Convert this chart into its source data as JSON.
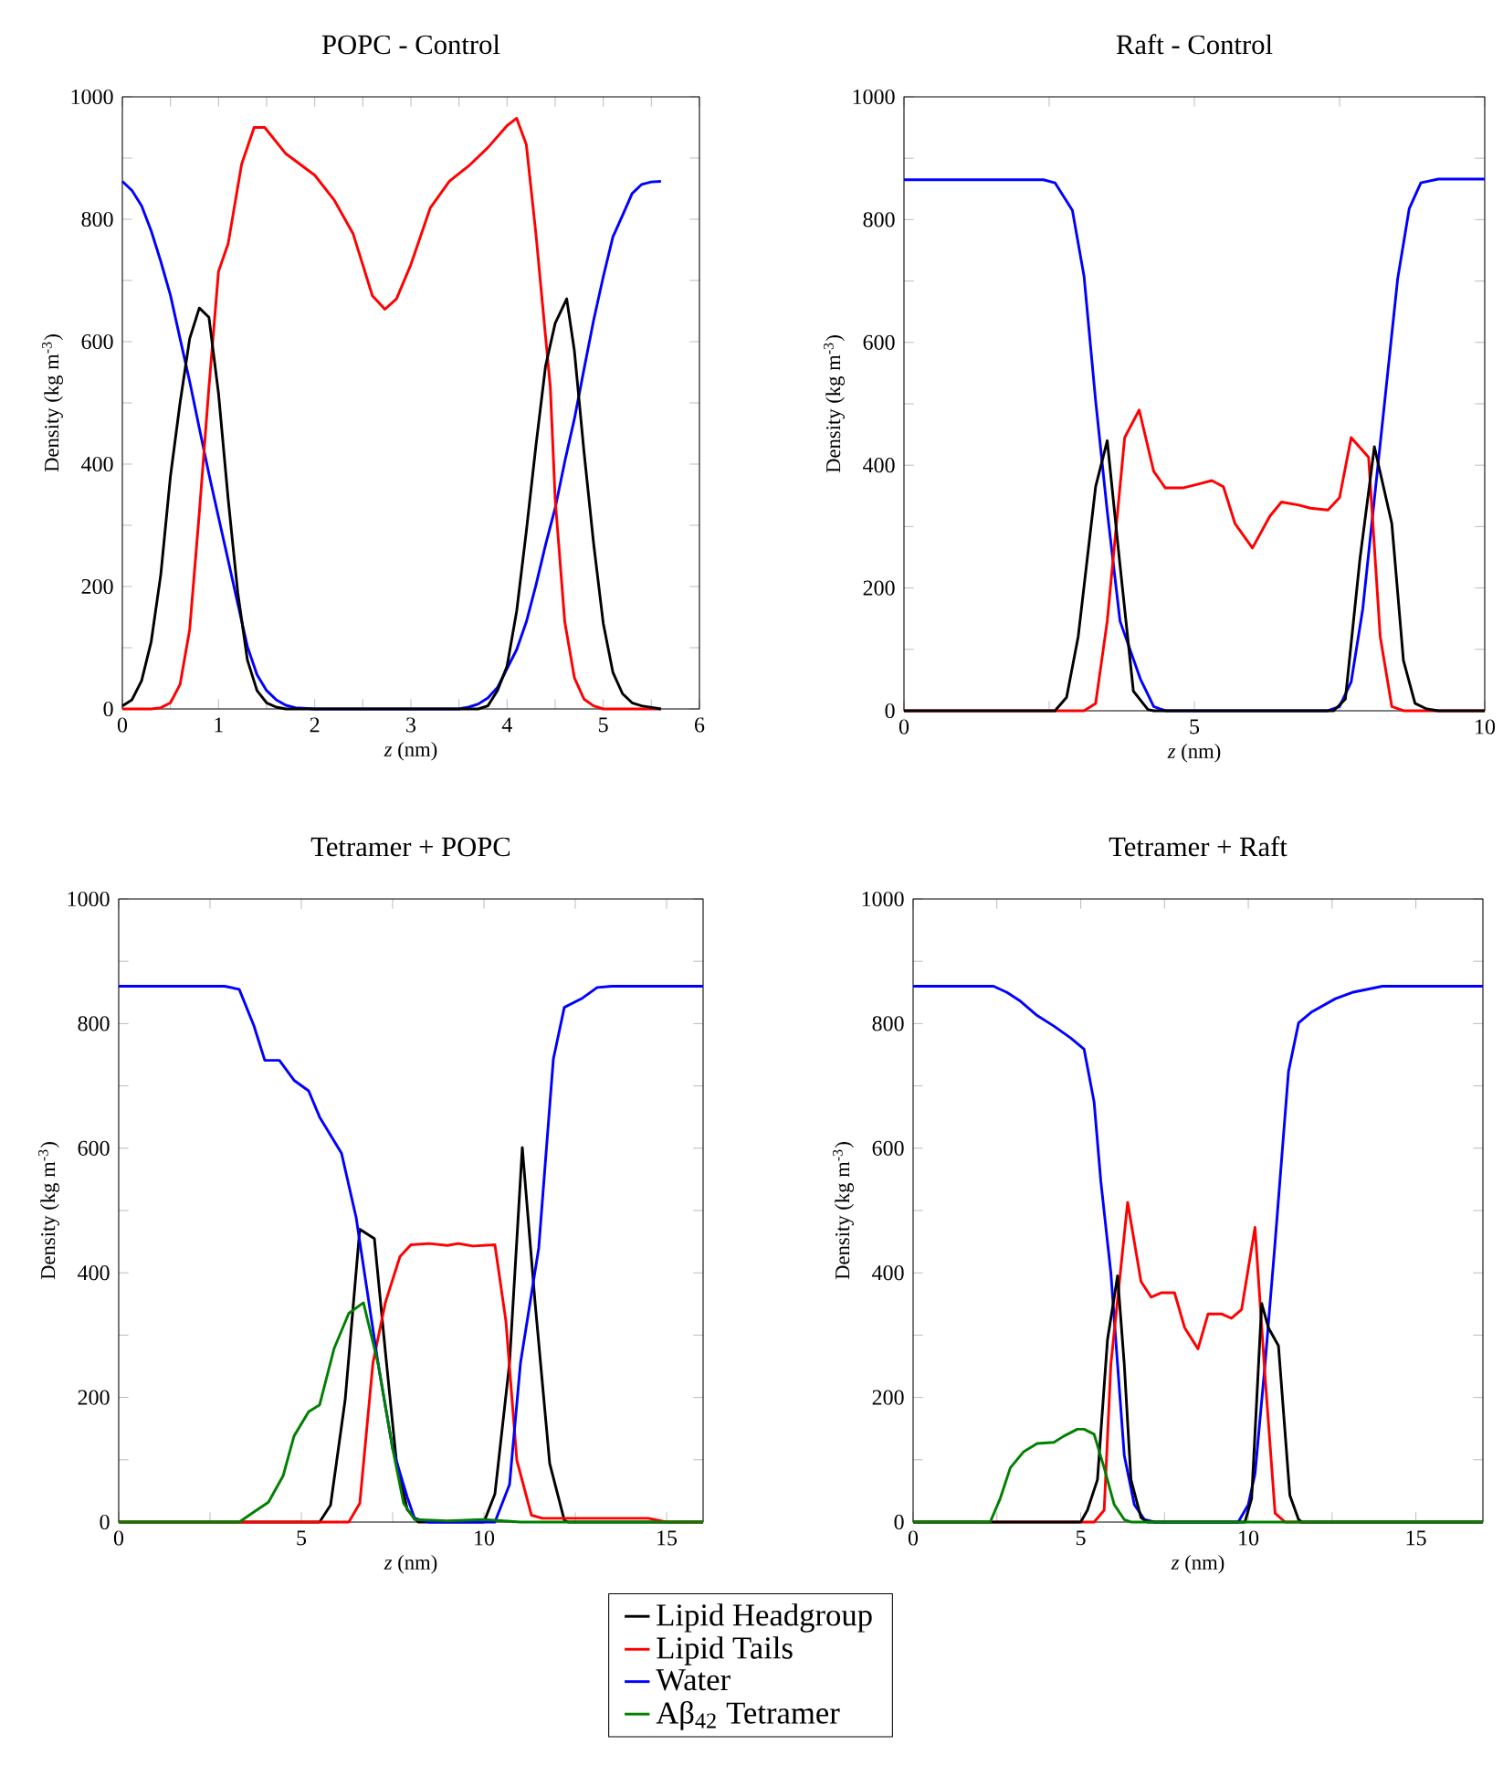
{
  "chart_data": [
    {
      "type": "line",
      "title": "POPC - Control",
      "xlabel": "*z* (nm)",
      "ylabel": "Density (kg m$^{-3}$)",
      "xlim": [
        0,
        6
      ],
      "ylim": [
        0,
        1000
      ],
      "xticks": [
        0,
        {
          "value": 0.5,
          "label": null
        },
        1,
        {
          "value": 1.5,
          "label": null
        },
        2,
        {
          "value": 2.5,
          "label": null
        },
        3,
        {
          "value": 3.5,
          "label": null
        },
        4,
        {
          "value": 4.5,
          "label": null
        },
        5,
        {
          "value": 5.5,
          "label": null
        },
        6
      ],
      "yticks": [
        0,
        {
          "value": 100,
          "label": null
        },
        200,
        {
          "value": 300,
          "label": null
        },
        400,
        {
          "value": 500,
          "label": null
        },
        600,
        {
          "value": 700,
          "label": null
        },
        800,
        {
          "value": 900,
          "label": null
        },
        1000
      ],
      "grid": false,
      "marker": "none",
      "line_style": "solid",
      "series": [
        {
          "color": "#0000ff",
          "x": [
            0,
            0.1,
            0.2,
            0.3,
            0.4,
            0.5,
            0.6,
            0.7,
            0.8,
            0.9,
            1.0,
            1.1,
            1.2,
            1.3,
            1.4,
            1.5,
            1.6,
            1.7,
            1.8,
            2.0,
            3.5,
            3.6,
            3.7,
            3.8,
            3.9,
            4.0,
            4.1,
            4.2,
            4.3,
            4.4,
            4.5,
            4.6,
            4.7,
            4.8,
            4.9,
            5.0,
            5.1,
            5.2,
            5.3,
            5.4,
            5.5,
            5.6
          ],
          "values": [
            862,
            847,
            822,
            781,
            731,
            676,
            605,
            535,
            459,
            384,
            313,
            243,
            172,
            102,
            56,
            30,
            15,
            6,
            2,
            0,
            0,
            3,
            8,
            18,
            35,
            66,
            97,
            142,
            202,
            268,
            328,
            404,
            474,
            555,
            635,
            706,
            771,
            806,
            842,
            857,
            861,
            862
          ]
        },
        {
          "color": "#ff0000",
          "x": [
            0,
            0.3,
            0.4,
            0.5,
            0.6,
            0.7,
            0.8,
            0.9,
            1.0,
            1.1,
            1.24,
            1.37,
            1.48,
            1.7,
            2.0,
            2.2,
            2.4,
            2.6,
            2.73,
            2.85,
            3.0,
            3.2,
            3.4,
            3.6,
            3.8,
            4.0,
            4.1,
            4.2,
            4.3,
            4.45,
            4.5,
            4.6,
            4.7,
            4.8,
            4.9,
            5.0,
            5.6
          ],
          "values": [
            0,
            0,
            2,
            10,
            40,
            130,
            320,
            525,
            715,
            760,
            890,
            950,
            950,
            907,
            872,
            832,
            776,
            675,
            653,
            670,
            726,
            818,
            862,
            887,
            917,
            953,
            965,
            922,
            776,
            525,
            343,
            142,
            51,
            16,
            5,
            0,
            0
          ]
        },
        {
          "color": "#000000",
          "x": [
            0,
            0.1,
            0.2,
            0.3,
            0.4,
            0.5,
            0.6,
            0.7,
            0.8,
            0.9,
            1.0,
            1.1,
            1.2,
            1.3,
            1.4,
            1.5,
            1.6,
            1.7,
            3.7,
            3.8,
            3.9,
            4.0,
            4.1,
            4.2,
            4.3,
            4.4,
            4.5,
            4.62,
            4.7,
            4.8,
            4.9,
            5.0,
            5.1,
            5.2,
            5.3,
            5.4,
            5.6
          ],
          "values": [
            5,
            15,
            46,
            110,
            220,
            380,
            500,
            605,
            655,
            640,
            515,
            343,
            190,
            80,
            30,
            10,
            3,
            0,
            0,
            5,
            30,
            70,
            160,
            290,
            430,
            560,
            630,
            670,
            585,
            420,
            270,
            140,
            60,
            25,
            10,
            5,
            0
          ]
        }
      ]
    },
    {
      "type": "line",
      "title": "Raft - Control",
      "xlabel": "*z* (nm)",
      "ylabel": "Density (kg m$^{-3}$)",
      "xlim": [
        0,
        10
      ],
      "ylim": [
        0,
        1000
      ],
      "xticks": [
        0,
        {
          "value": 2.5,
          "label": null
        },
        5,
        {
          "value": 7.5,
          "label": null
        },
        10
      ],
      "yticks": [
        0,
        {
          "value": 100,
          "label": null
        },
        200,
        {
          "value": 300,
          "label": null
        },
        400,
        {
          "value": 500,
          "label": null
        },
        600,
        {
          "value": 700,
          "label": null
        },
        800,
        {
          "value": 900,
          "label": null
        },
        1000
      ],
      "grid": false,
      "marker": "none",
      "line_style": "solid",
      "series": [
        {
          "color": "#0000ff",
          "x": [
            0,
            2.4,
            2.6,
            2.9,
            3.1,
            3.3,
            3.5,
            3.72,
            4.07,
            4.3,
            4.5,
            7.3,
            7.5,
            7.7,
            7.9,
            8.1,
            8.3,
            8.5,
            8.7,
            8.9,
            9.2,
            10
          ],
          "values": [
            865,
            865,
            860,
            815,
            708,
            505,
            325,
            146,
            52,
            7,
            0,
            0,
            7,
            47,
            166,
            345,
            524,
            703,
            818,
            860,
            866,
            866
          ]
        },
        {
          "color": "#ff0000",
          "x": [
            0,
            3.1,
            3.3,
            3.5,
            3.8,
            4.05,
            4.3,
            4.5,
            4.8,
            5.1,
            5.3,
            5.5,
            5.7,
            6.0,
            6.3,
            6.5,
            6.8,
            7.0,
            7.3,
            7.5,
            7.7,
            8.0,
            8.2,
            8.4,
            8.6,
            10
          ],
          "values": [
            0,
            0,
            12,
            146,
            445,
            490,
            390,
            363,
            363,
            370,
            375,
            365,
            305,
            265,
            317,
            340,
            335,
            330,
            327,
            347,
            445,
            413,
            121,
            7,
            0,
            0
          ]
        },
        {
          "color": "#000000",
          "x": [
            0,
            2.6,
            2.8,
            3.0,
            3.3,
            3.5,
            3.7,
            3.95,
            4.2,
            4.3,
            7.4,
            7.6,
            7.85,
            8.1,
            8.4,
            8.6,
            8.8,
            9.0,
            9.2,
            10
          ],
          "values": [
            0,
            0,
            22,
            121,
            365,
            440,
            255,
            32,
            2,
            0,
            0,
            19,
            246,
            430,
            305,
            82,
            12,
            3,
            0,
            0
          ]
        }
      ]
    },
    {
      "type": "line",
      "title": "Tetramer + POPC",
      "xlabel": "*z* (nm)",
      "ylabel": "Density (kg m$^{-3}$)",
      "xlim": [
        0,
        16
      ],
      "ylim": [
        0,
        1000
      ],
      "xticks": [
        0,
        {
          "value": 2.5,
          "label": null
        },
        5,
        {
          "value": 7.5,
          "label": null
        },
        10,
        {
          "value": 12.5,
          "label": null
        },
        15
      ],
      "yticks": [
        0,
        {
          "value": 100,
          "label": null
        },
        200,
        {
          "value": 300,
          "label": null
        },
        400,
        {
          "value": 500,
          "label": null
        },
        600,
        {
          "value": 700,
          "label": null
        },
        800,
        {
          "value": 900,
          "label": null
        },
        1000
      ],
      "grid": false,
      "marker": "none",
      "line_style": "solid",
      "legend": "bottom",
      "series": [
        {
          "name": "Lipid Headgroup",
          "color": "#000000",
          "x": [
            0,
            5.5,
            5.8,
            6.2,
            6.6,
            7.0,
            7.3,
            7.6,
            7.9,
            8.2,
            10.0,
            10.3,
            10.7,
            11.05,
            11.4,
            11.8,
            12.2,
            12.3,
            16
          ],
          "values": [
            0,
            0,
            27,
            196,
            470,
            455,
            274,
            99,
            20,
            0,
            0,
            45,
            255,
            601,
            352,
            94,
            3,
            0,
            0
          ]
        },
        {
          "name": "Lipid Tails",
          "color": "#ff0000",
          "x": [
            0,
            6.3,
            6.6,
            6.96,
            7.3,
            7.7,
            8.0,
            8.5,
            9.0,
            9.3,
            9.7,
            10.3,
            10.6,
            10.9,
            11.3,
            11.6,
            14.5,
            15,
            16
          ],
          "values": [
            0,
            0,
            30,
            255,
            352,
            426,
            445,
            447,
            444,
            447,
            443,
            445,
            323,
            99,
            11,
            6,
            6,
            0,
            0
          ]
        },
        {
          "name": "Water",
          "color": "#0000ff",
          "x": [
            0,
            2.9,
            3.3,
            3.7,
            4.0,
            4.4,
            4.8,
            5.2,
            5.5,
            6.1,
            6.5,
            6.8,
            7.1,
            7.5,
            7.9,
            8.1,
            8.5,
            10.3,
            10.7,
            11.0,
            11.5,
            11.9,
            12.2,
            12.7,
            13.1,
            13.5,
            16
          ],
          "values": [
            860,
            860,
            855,
            797,
            741,
            741,
            709,
            692,
            650,
            592,
            489,
            372,
            255,
            118,
            40,
            6,
            0,
            0,
            60,
            255,
            440,
            743,
            826,
            841,
            858,
            860,
            860
          ]
        },
        {
          "name": "Aβ$_{42}$ Tetramer",
          "color": "#008000",
          "x": [
            0,
            3.3,
            3.7,
            4.1,
            4.5,
            4.8,
            5.2,
            5.5,
            5.9,
            6.3,
            6.7,
            7.1,
            7.5,
            7.8,
            8.1,
            9.0,
            10.0,
            10.5,
            11.0,
            16
          ],
          "values": [
            0,
            0,
            16,
            32,
            74,
            138,
            177,
            188,
            279,
            335,
            352,
            255,
            118,
            30,
            4,
            2,
            4,
            2,
            0,
            0
          ]
        }
      ]
    },
    {
      "type": "line",
      "title": "Tetramer + Raft",
      "xlabel": "*z* (nm)",
      "ylabel": "Density (kg m$^{-3}$)",
      "xlim": [
        0,
        17
      ],
      "ylim": [
        0,
        1000
      ],
      "xticks": [
        0,
        {
          "value": 2.5,
          "label": null
        },
        5,
        {
          "value": 7.5,
          "label": null
        },
        10,
        {
          "value": 12.5,
          "label": null
        },
        15
      ],
      "yticks": [
        0,
        {
          "value": 100,
          "label": null
        },
        200,
        {
          "value": 300,
          "label": null
        },
        400,
        {
          "value": 500,
          "label": null
        },
        600,
        {
          "value": 700,
          "label": null
        },
        800,
        {
          "value": 900,
          "label": null
        },
        1000
      ],
      "grid": false,
      "marker": "none",
      "line_style": "solid",
      "series": [
        {
          "color": "#0000ff",
          "x": [
            0,
            2.4,
            2.8,
            3.2,
            3.7,
            4.2,
            4.7,
            5.1,
            5.4,
            5.6,
            5.9,
            6.1,
            6.3,
            6.6,
            6.9,
            7.2,
            9.7,
            10.0,
            10.2,
            10.5,
            10.8,
            11.2,
            11.5,
            11.9,
            12.6,
            13.1,
            14,
            17
          ],
          "values": [
            860,
            860,
            850,
            836,
            813,
            796,
            777,
            759,
            674,
            547,
            400,
            253,
            107,
            28,
            4,
            0,
            0,
            28,
            77,
            253,
            449,
            723,
            801,
            819,
            840,
            850,
            860,
            860
          ]
        },
        {
          "color": "#ff0000",
          "x": [
            0,
            5.4,
            5.7,
            5.9,
            6.4,
            6.8,
            7.1,
            7.4,
            7.8,
            8.1,
            8.5,
            8.8,
            9.2,
            9.5,
            9.8,
            10.2,
            10.5,
            10.8,
            11.1,
            17
          ],
          "values": [
            0,
            0,
            19,
            253,
            513,
            386,
            361,
            368,
            368,
            312,
            278,
            334,
            334,
            327,
            341,
            473,
            234,
            14,
            0,
            0
          ]
        },
        {
          "color": "#000000",
          "x": [
            0,
            5.0,
            5.2,
            5.5,
            5.8,
            6.1,
            6.3,
            6.5,
            6.8,
            7.0,
            9.9,
            10.1,
            10.4,
            10.6,
            10.9,
            11.24,
            11.5,
            11.6,
            17
          ],
          "values": [
            0,
            0,
            19,
            68,
            293,
            395,
            253,
            68,
            7,
            0,
            0,
            38,
            351,
            312,
            283,
            43,
            4,
            0,
            0
          ]
        },
        {
          "color": "#008000",
          "x": [
            0,
            2.3,
            2.6,
            2.9,
            3.3,
            3.7,
            4.2,
            4.5,
            4.9,
            5.1,
            5.4,
            5.7,
            6.0,
            6.3,
            6.5,
            17
          ],
          "values": [
            0,
            0,
            38,
            87,
            113,
            126,
            128,
            138,
            149,
            149,
            141,
            87,
            28,
            4,
            0,
            0
          ]
        }
      ]
    }
  ]
}
